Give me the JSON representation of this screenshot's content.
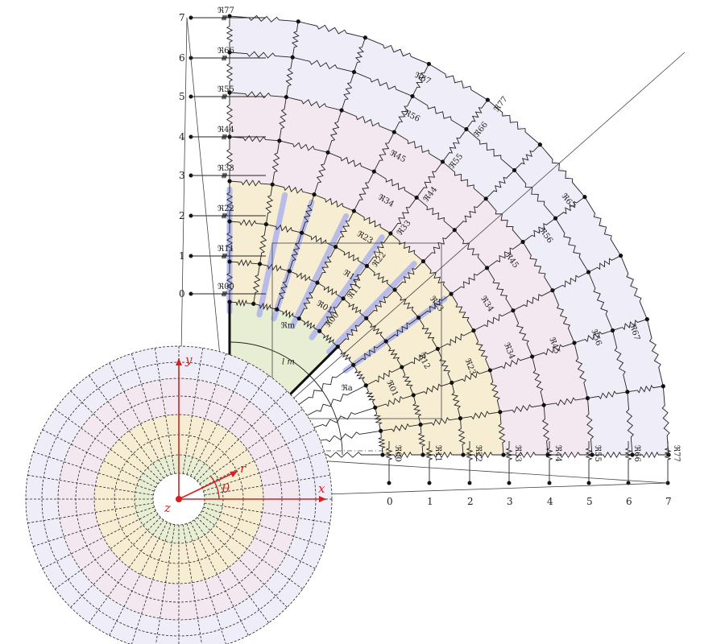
{
  "colors": {
    "green": "#e7eed3",
    "yellow": "#f7edd3",
    "pink": "#f3e8ef",
    "lavender": "#efeef8",
    "blue_band": "#aab0ee",
    "axis_red": "#d62020",
    "line": "#222222"
  },
  "row_labels": [
    "0",
    "1",
    "2",
    "3",
    "4",
    "5",
    "6",
    "7"
  ],
  "col_labels": [
    "0",
    "1",
    "2",
    "3",
    "4",
    "5",
    "6",
    "7"
  ],
  "left_resistor_labels": [
    "ℜ00",
    "ℜ11",
    "ℜ22",
    "ℜ33",
    "ℜ44",
    "ℜ55",
    "ℜ66",
    "ℜ77"
  ],
  "bottom_resistor_labels": [
    "ℜ00",
    "ℜ11",
    "ℜ22",
    "ℜ33",
    "ℜ44",
    "ℜ55",
    "ℜ66",
    "ℜ77"
  ],
  "diagonal_labels": [
    "ℜ00",
    "ℜ11",
    "ℜ22",
    "ℜ33",
    "ℜ44",
    "ℜ55",
    "ℜ66",
    "ℜ77"
  ],
  "inner_labels": [
    {
      "text": "ℜ01",
      "at": "ring3_ang60"
    },
    {
      "text": "ℜ12",
      "at": "ring4_ang58"
    },
    {
      "text": "ℜ23",
      "at": "ring5_ang60"
    },
    {
      "text": "ℜ34",
      "at": "ring6_ang60"
    },
    {
      "text": "ℜ45",
      "at": "ring7_ang62"
    },
    {
      "text": "ℜ56",
      "at": "ring8_ang63"
    },
    {
      "text": "ℜ67",
      "at": "ring9_ang64"
    },
    {
      "text": "ℜ01",
      "at": "ring3_ang25"
    },
    {
      "text": "ℜ12",
      "at": "ring4_ang28"
    },
    {
      "text": "ℜ23",
      "at": "ring5_ang22"
    },
    {
      "text": "ℜ34",
      "at": "ring6_ang22"
    },
    {
      "text": "ℜ45",
      "at": "ring7_ang20"
    },
    {
      "text": "ℜ56",
      "at": "ring8_ang19"
    },
    {
      "text": "ℜ67",
      "at": "ring9_ang18"
    },
    {
      "text": "ℜ23",
      "at": "ring5_ang38"
    },
    {
      "text": "ℜ34",
      "at": "ring6_ang32"
    },
    {
      "text": "ℜ45",
      "at": "ring7_ang36"
    },
    {
      "text": "ℜ56",
      "at": "ring8_ang36"
    },
    {
      "text": "ℜ67",
      "at": "ring9_ang38"
    }
  ],
  "special_labels": {
    "r_m": "ℜm",
    "r_a": "ℜa",
    "l_m": "l m"
  },
  "axes": {
    "x": "x",
    "y": "y",
    "z": "z",
    "r": "r",
    "theta": "θ"
  }
}
